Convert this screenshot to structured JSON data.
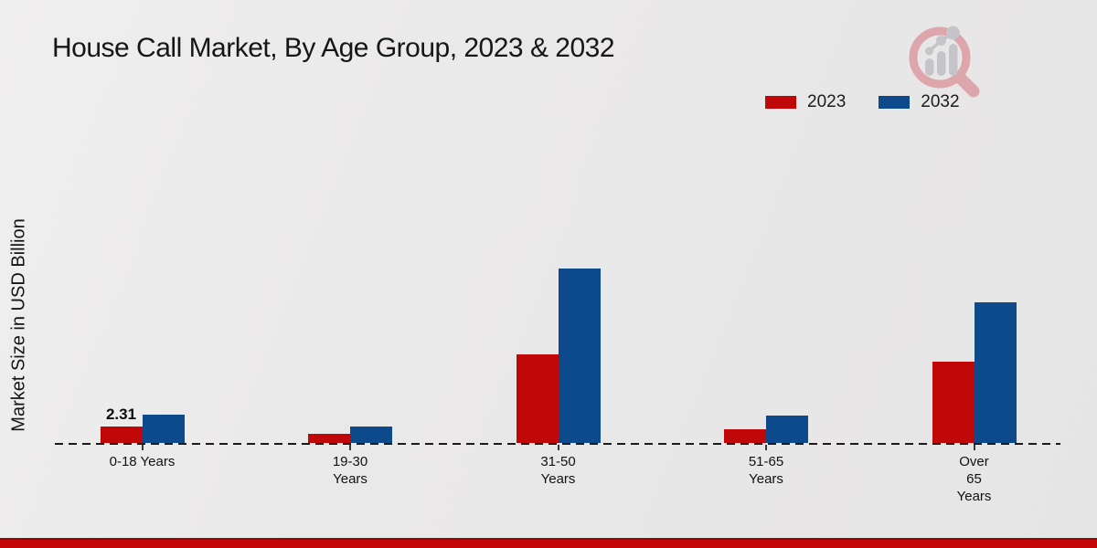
{
  "header": {
    "title": "House Call Market, By Age Group, 2023 & 2032"
  },
  "axes": {
    "y_label": "Market Size in USD Billion"
  },
  "legend": {
    "items": [
      {
        "label": "2023",
        "color": "#c00808"
      },
      {
        "label": "2032",
        "color": "#0c4a8c"
      }
    ]
  },
  "icons": {
    "logo": "magnifier-bar-chart-logo"
  },
  "colors": {
    "series_2023": "#c00808",
    "series_2032": "#0c4a8c",
    "footer_band": "#c30707",
    "background": "#e9e8e8",
    "baseline": "#1a1a1a"
  },
  "chart_data": {
    "type": "bar",
    "title": "House Call Market, By Age Group, 2023 & 2032",
    "xlabel": "",
    "ylabel": "Market Size in USD Billion",
    "categories": [
      "0-18 Years",
      "19-30 Years",
      "31-50 Years",
      "51-65 Years",
      "Over 65 Years"
    ],
    "category_label_lines": [
      [
        "0-18 Years"
      ],
      [
        "19-30",
        "Years"
      ],
      [
        "31-50",
        "Years"
      ],
      [
        "51-65",
        "Years"
      ],
      [
        "Over",
        "65",
        "Years"
      ]
    ],
    "series": [
      {
        "name": "2023",
        "color": "#c00808",
        "values": [
          2.31,
          1.25,
          12.1,
          1.9,
          11.1
        ]
      },
      {
        "name": "2032",
        "color": "#0c4a8c",
        "values": [
          3.9,
          2.31,
          23.9,
          3.7,
          19.3
        ]
      }
    ],
    "data_labels": [
      {
        "series": "2023",
        "category_index": 0,
        "text": "2.31"
      }
    ],
    "ylim": [
      0,
      28
    ],
    "grid": false,
    "y_axis_ticks_visible": false,
    "legend_position": "top-right",
    "baseline_style": "dashed"
  }
}
